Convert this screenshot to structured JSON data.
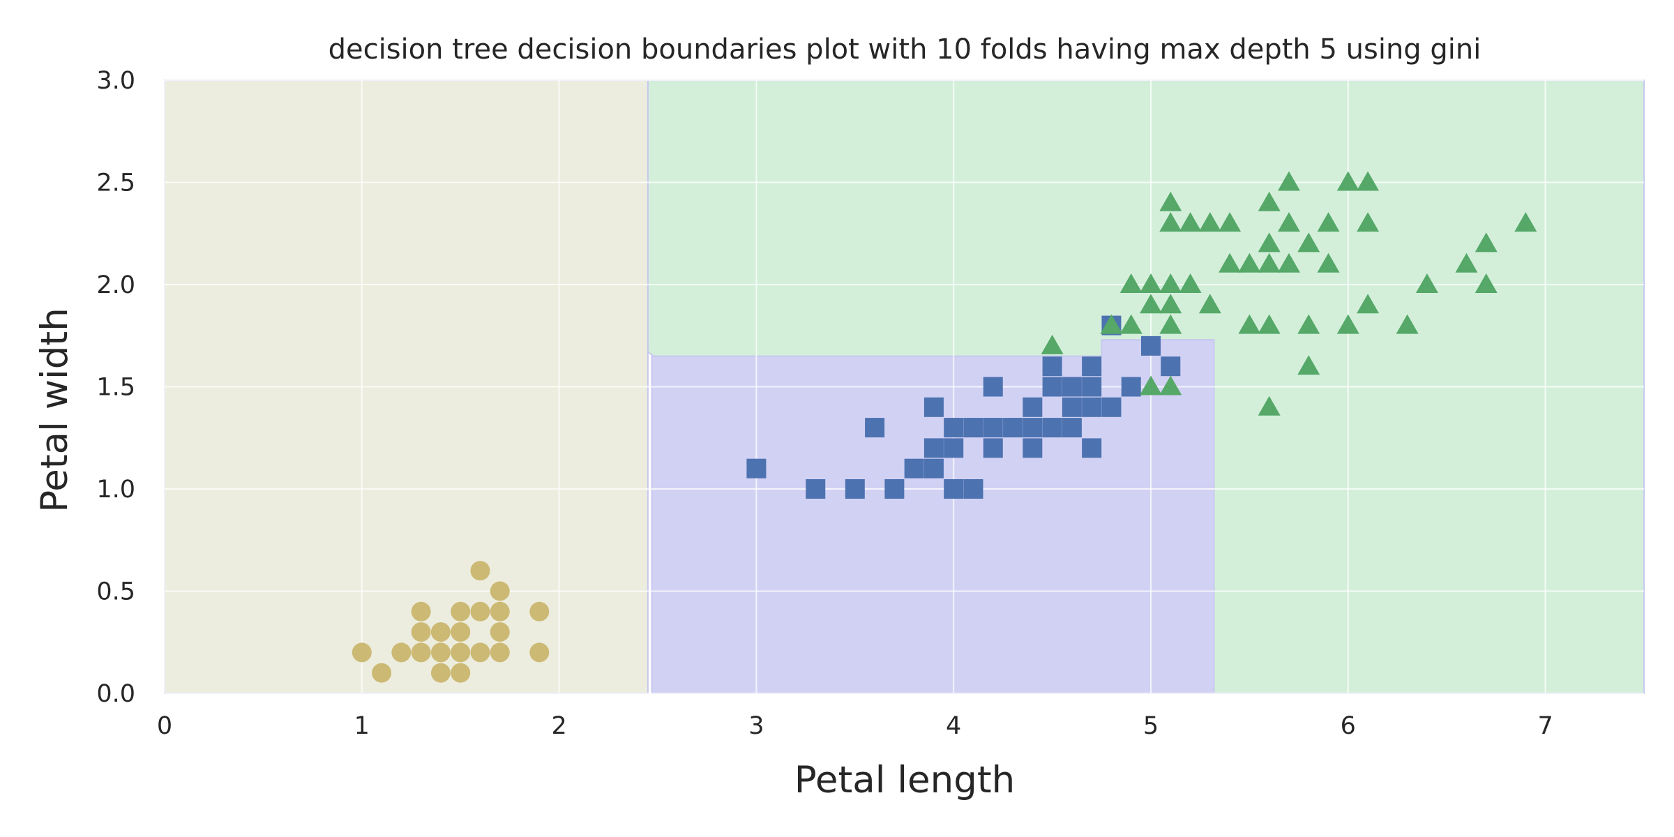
{
  "chart_data": {
    "type": "scatter",
    "title": "decision tree decision boundaries plot with 10 folds having max depth 5 using gini",
    "xlabel": "Petal length",
    "ylabel": "Petal width",
    "xlim": [
      0,
      7.5
    ],
    "ylim": [
      0,
      3.0
    ],
    "xticks": [
      0,
      1,
      2,
      3,
      4,
      5,
      6,
      7
    ],
    "yticks": [
      0.0,
      0.5,
      1.0,
      1.5,
      2.0,
      2.5,
      3.0
    ],
    "xtick_labels": [
      "0",
      "1",
      "2",
      "3",
      "4",
      "5",
      "6",
      "7"
    ],
    "ytick_labels": [
      "0.0",
      "0.5",
      "1.0",
      "1.5",
      "2.0",
      "2.5",
      "3.0"
    ],
    "grid": true,
    "legend": "none",
    "decision_regions": [
      {
        "class_index": 0,
        "color": "#ecedde",
        "polygons": [
          [
            [
              0,
              0
            ],
            [
              2.45,
              0
            ],
            [
              2.45,
              3.0
            ],
            [
              0,
              3.0
            ]
          ]
        ]
      },
      {
        "class_index": 1,
        "color": "#d1d1f4",
        "polygons": [
          [
            [
              2.47,
              0
            ],
            [
              5.32,
              0
            ],
            [
              5.32,
              1.73
            ],
            [
              4.75,
              1.73
            ],
            [
              4.75,
              1.65
            ],
            [
              2.47,
              1.65
            ]
          ]
        ]
      },
      {
        "class_index": 2,
        "color": "#d3efda",
        "polygons": [
          [
            [
              2.45,
              3.0
            ],
            [
              2.45,
              1.67
            ],
            [
              2.48,
              1.65
            ],
            [
              4.75,
              1.65
            ],
            [
              4.75,
              1.73
            ],
            [
              5.32,
              1.73
            ],
            [
              5.32,
              0
            ],
            [
              7.5,
              0
            ],
            [
              7.5,
              3.0
            ]
          ]
        ]
      }
    ],
    "series": [
      {
        "marker": "circle",
        "color": "#ccb974",
        "points": [
          [
            1.0,
            0.2
          ],
          [
            1.1,
            0.1
          ],
          [
            1.2,
            0.2
          ],
          [
            1.3,
            0.2
          ],
          [
            1.3,
            0.3
          ],
          [
            1.3,
            0.4
          ],
          [
            1.4,
            0.1
          ],
          [
            1.4,
            0.2
          ],
          [
            1.4,
            0.3
          ],
          [
            1.5,
            0.1
          ],
          [
            1.5,
            0.2
          ],
          [
            1.5,
            0.3
          ],
          [
            1.5,
            0.4
          ],
          [
            1.6,
            0.2
          ],
          [
            1.6,
            0.4
          ],
          [
            1.6,
            0.6
          ],
          [
            1.7,
            0.2
          ],
          [
            1.7,
            0.3
          ],
          [
            1.7,
            0.4
          ],
          [
            1.7,
            0.5
          ],
          [
            1.9,
            0.2
          ],
          [
            1.9,
            0.4
          ]
        ]
      },
      {
        "marker": "square",
        "color": "#4c72b0",
        "points": [
          [
            3.0,
            1.1
          ],
          [
            3.3,
            1.0
          ],
          [
            3.5,
            1.0
          ],
          [
            3.6,
            1.3
          ],
          [
            3.7,
            1.0
          ],
          [
            3.8,
            1.1
          ],
          [
            3.9,
            1.1
          ],
          [
            3.9,
            1.2
          ],
          [
            3.9,
            1.4
          ],
          [
            4.0,
            1.0
          ],
          [
            4.0,
            1.2
          ],
          [
            4.0,
            1.3
          ],
          [
            4.1,
            1.0
          ],
          [
            4.1,
            1.3
          ],
          [
            4.2,
            1.2
          ],
          [
            4.2,
            1.3
          ],
          [
            4.2,
            1.5
          ],
          [
            4.3,
            1.3
          ],
          [
            4.4,
            1.2
          ],
          [
            4.4,
            1.3
          ],
          [
            4.4,
            1.4
          ],
          [
            4.5,
            1.3
          ],
          [
            4.5,
            1.5
          ],
          [
            4.5,
            1.6
          ],
          [
            4.6,
            1.3
          ],
          [
            4.6,
            1.4
          ],
          [
            4.6,
            1.5
          ],
          [
            4.7,
            1.2
          ],
          [
            4.7,
            1.4
          ],
          [
            4.7,
            1.5
          ],
          [
            4.7,
            1.6
          ],
          [
            4.8,
            1.4
          ],
          [
            4.8,
            1.8
          ],
          [
            4.9,
            1.5
          ],
          [
            5.0,
            1.7
          ],
          [
            5.1,
            1.6
          ]
        ]
      },
      {
        "marker": "triangle",
        "color": "#55a868",
        "points": [
          [
            4.5,
            1.7
          ],
          [
            4.8,
            1.8
          ],
          [
            4.9,
            1.8
          ],
          [
            4.9,
            2.0
          ],
          [
            5.0,
            1.5
          ],
          [
            5.0,
            1.9
          ],
          [
            5.0,
            2.0
          ],
          [
            5.1,
            1.5
          ],
          [
            5.1,
            1.8
          ],
          [
            5.1,
            1.9
          ],
          [
            5.1,
            2.0
          ],
          [
            5.1,
            2.3
          ],
          [
            5.1,
            2.4
          ],
          [
            5.2,
            2.0
          ],
          [
            5.2,
            2.3
          ],
          [
            5.3,
            1.9
          ],
          [
            5.3,
            2.3
          ],
          [
            5.4,
            2.1
          ],
          [
            5.4,
            2.3
          ],
          [
            5.5,
            1.8
          ],
          [
            5.5,
            2.1
          ],
          [
            5.6,
            1.4
          ],
          [
            5.6,
            1.8
          ],
          [
            5.6,
            2.1
          ],
          [
            5.6,
            2.2
          ],
          [
            5.6,
            2.4
          ],
          [
            5.7,
            2.1
          ],
          [
            5.7,
            2.3
          ],
          [
            5.7,
            2.5
          ],
          [
            5.8,
            1.6
          ],
          [
            5.8,
            1.8
          ],
          [
            5.8,
            2.2
          ],
          [
            5.9,
            2.1
          ],
          [
            5.9,
            2.3
          ],
          [
            6.0,
            1.8
          ],
          [
            6.0,
            2.5
          ],
          [
            6.1,
            1.9
          ],
          [
            6.1,
            2.3
          ],
          [
            6.1,
            2.5
          ],
          [
            6.3,
            1.8
          ],
          [
            6.4,
            2.0
          ],
          [
            6.6,
            2.1
          ],
          [
            6.7,
            2.0
          ],
          [
            6.7,
            2.2
          ],
          [
            6.9,
            2.3
          ]
        ]
      }
    ],
    "colors": {
      "grid": "#ffffff",
      "region_border": "#c8c8f0",
      "text": "#262626"
    }
  }
}
